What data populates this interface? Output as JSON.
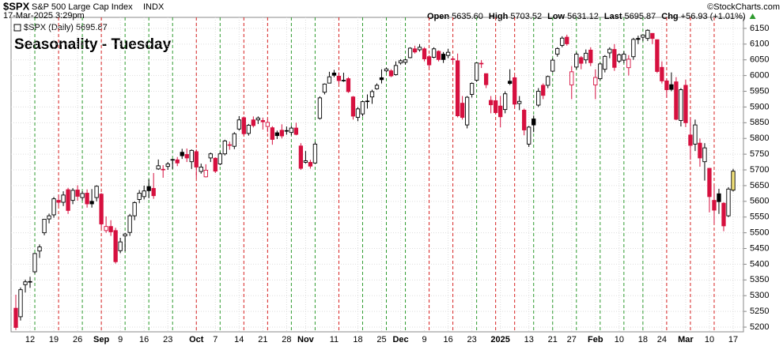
{
  "chart_data": {
    "type": "candlestick",
    "symbol": "$SPX",
    "symbol_name": "S&P 500 Large Cap Index",
    "exchange": "INDX",
    "timestamp": "17-Mar-2025 3:29pm",
    "quote": [
      {
        "label": "Open",
        "value": "5635.60"
      },
      {
        "label": "High",
        "value": "5703.52"
      },
      {
        "label": "Low",
        "value": "5631.12"
      },
      {
        "label": "Last",
        "value": "5695.87"
      },
      {
        "label": "Chg",
        "value": "+56.93 (+1.01%)"
      }
    ],
    "copyright": "©StockCharts.com",
    "legend": "$SPX (Daily) 5695.87",
    "title": "Seasonality - Tuesday",
    "categories": [
      null,
      null,
      null,
      "12",
      null,
      null,
      null,
      null,
      "19",
      null,
      null,
      null,
      null,
      "26",
      null,
      null,
      null,
      null,
      "Sep",
      null,
      null,
      null,
      "9",
      null,
      null,
      null,
      null,
      "16",
      null,
      null,
      null,
      null,
      "23",
      null,
      null,
      null,
      null,
      null,
      "Oct",
      null,
      null,
      null,
      "7",
      null,
      null,
      null,
      null,
      "14",
      null,
      null,
      null,
      null,
      "21",
      null,
      null,
      null,
      null,
      "28",
      null,
      null,
      null,
      "Nov",
      null,
      null,
      null,
      null,
      null,
      "11",
      null,
      null,
      null,
      null,
      "18",
      null,
      null,
      null,
      null,
      "25",
      null,
      null,
      null,
      "Dec",
      null,
      null,
      null,
      null,
      "9",
      null,
      null,
      null,
      null,
      "16",
      null,
      null,
      null,
      null,
      "23",
      null,
      null,
      null,
      null,
      null,
      "2025",
      null,
      null,
      null,
      null,
      null,
      "13",
      null,
      null,
      null,
      null,
      "21",
      null,
      null,
      null,
      "27",
      null,
      null,
      null,
      null,
      "Feb",
      null,
      null,
      null,
      null,
      "10",
      null,
      null,
      null,
      null,
      "18",
      null,
      null,
      null,
      "24",
      null,
      null,
      null,
      null,
      "Mar",
      null,
      null,
      null,
      null,
      "10",
      null,
      null,
      null,
      null,
      "17"
    ],
    "open": [
      5260,
      5233,
      5335,
      5345,
      5376,
      5442,
      5500,
      5544,
      5557,
      5603,
      5597,
      5637,
      5603,
      5636,
      5612,
      5626,
      5600,
      5612,
      5623,
      5507,
      5520,
      5507,
      5443,
      5490,
      5501,
      5554,
      5606,
      5615,
      5647,
      5641,
      5703,
      5702,
      5711,
      5733,
      5732,
      5756,
      5749,
      5726,
      5758,
      5695,
      5678,
      5738,
      5737,
      5719,
      5751,
      5778,
      5775,
      5830,
      5866,
      5816,
      5859,
      5859,
      5857,
      5838,
      5834,
      5818,
      5826,
      5825,
      5819,
      5833,
      5776,
      5724,
      5724,
      5722,
      5864,
      5947,
      5976,
      6008,
      5998,
      5985,
      5990,
      5932,
      5867,
      5878,
      5919,
      5932,
      5958,
      5993,
      6015,
      6015,
      6003,
      6040,
      6042,
      6057,
      6085,
      6082,
      6085,
      6060,
      6058,
      6077,
      6068,
      6064,
      6053,
      6047,
      5912,
      5843,
      5940,
      5985,
      6039,
      6006,
      5921,
      5920,
      5903,
      5892,
      5982,
      5993,
      5911,
      5890,
      5782,
      5862,
      5906,
      5969,
      5969,
      6014,
      6068,
      6096,
      6122,
      5970,
      6027,
      6057,
      6050,
      6081,
      5970,
      5990,
      6020,
      6072,
      6083,
      6046,
      6049,
      6025,
      6060,
      6118,
      6122,
      6118,
      6134,
      6114,
      6026,
      5983,
      5971,
      5980,
      5857,
      5969,
      5811,
      5782,
      5785,
      5726,
      5705,
      5603,
      5624,
      5594,
      5554,
      5635.6
    ],
    "high": [
      5303,
      5326,
      5351,
      5360,
      5436,
      5463,
      5544,
      5561,
      5614,
      5621,
      5632,
      5643,
      5642,
      5651,
      5632,
      5638,
      5639,
      5651,
      5626,
      5552,
      5540,
      5516,
      5484,
      5500,
      5560,
      5600,
      5636,
      5650,
      5670,
      5690,
      5733,
      5715,
      5725,
      5735,
      5741,
      5767,
      5768,
      5765,
      5765,
      5720,
      5718,
      5755,
      5740,
      5757,
      5796,
      5790,
      5820,
      5871,
      5870,
      5846,
      5870,
      5870,
      5866,
      5863,
      5839,
      5825,
      5845,
      5838,
      5840,
      5850,
      5785,
      5760,
      5732,
      5789,
      5934,
      5975,
      6012,
      6018,
      6010,
      6009,
      5995,
      5935,
      5900,
      5920,
      5940,
      5955,
      5975,
      6020,
      6025,
      6020,
      6045,
      6052,
      6053,
      6090,
      6095,
      6100,
      6090,
      6065,
      6090,
      6080,
      6075,
      6085,
      6057,
      6070,
      5935,
      5935,
      5978,
      6041,
      6049,
      6007,
      5935,
      5930,
      5935,
      5950,
      6020,
      6000,
      5935,
      5895,
      5840,
      5873,
      5960,
      5975,
      6000,
      6055,
      6090,
      6125,
      6130,
      6030,
      6074,
      6062,
      6083,
      6090,
      6020,
      6040,
      6065,
      6090,
      6100,
      6070,
      6077,
      6065,
      6120,
      6127,
      6130,
      6147,
      6135,
      6115,
      6045,
      5990,
      6010,
      5995,
      5960,
      5987,
      5865,
      5860,
      5800,
      5785,
      5705,
      5648,
      5640,
      5597,
      5645,
      5703.52
    ],
    "low": [
      5191,
      5221,
      5310,
      5325,
      5370,
      5420,
      5492,
      5530,
      5548,
      5585,
      5585,
      5560,
      5591,
      5602,
      5603,
      5580,
      5580,
      5600,
      5515,
      5500,
      5490,
      5402,
      5435,
      5441,
      5490,
      5540,
      5594,
      5606,
      5610,
      5608,
      5700,
      5675,
      5700,
      5703,
      5712,
      5735,
      5725,
      5703,
      5674,
      5688,
      5676,
      5725,
      5690,
      5715,
      5746,
      5764,
      5766,
      5825,
      5810,
      5809,
      5835,
      5846,
      5828,
      5820,
      5780,
      5798,
      5800,
      5812,
      5810,
      5810,
      5700,
      5720,
      5704,
      5720,
      5860,
      5940,
      5976,
      5995,
      5974,
      5980,
      5945,
      5860,
      5855,
      5870,
      5895,
      5910,
      5955,
      5975,
      6010,
      5995,
      6000,
      6035,
      6035,
      6055,
      6070,
      6076,
      6045,
      6025,
      6055,
      6045,
      6040,
      6055,
      6040,
      5867,
      5860,
      5832,
      5930,
      5980,
      6024,
      5960,
      5880,
      5880,
      5835,
      5880,
      5970,
      5897,
      5890,
      5810,
      5773,
      5820,
      5900,
      5925,
      5960,
      6010,
      6060,
      6090,
      6095,
      5925,
      6020,
      6020,
      6038,
      6030,
      5925,
      5985,
      6010,
      6055,
      6015,
      6040,
      6040,
      6000,
      6050,
      6100,
      6110,
      6110,
      6100,
      6008,
      5975,
      5930,
      5950,
      5858,
      5838,
      5836,
      5732,
      5760,
      5710,
      5666,
      5565,
      5529,
      5560,
      5505,
      5550,
      5631.12
    ],
    "close": [
      5199,
      5319,
      5344,
      5344,
      5434,
      5455,
      5543,
      5554,
      5608,
      5597,
      5620,
      5571,
      5635,
      5616,
      5625,
      5592,
      5592,
      5648,
      5528,
      5520,
      5503,
      5408,
      5471,
      5496,
      5554,
      5596,
      5626,
      5633,
      5634,
      5618,
      5713,
      5702,
      5719,
      5732,
      5722,
      5745,
      5738,
      5762,
      5709,
      5709,
      5699,
      5751,
      5696,
      5751,
      5792,
      5780,
      5815,
      5859,
      5815,
      5842,
      5841,
      5865,
      5853,
      5851,
      5797,
      5809,
      5808,
      5823,
      5833,
      5813,
      5705,
      5729,
      5712,
      5782,
      5929,
      5973,
      5996,
      6001,
      5984,
      5985,
      5949,
      5871,
      5894,
      5917,
      5917,
      5949,
      5969,
      5987,
      6021,
      5999,
      6032,
      6047,
      6050,
      6087,
      6075,
      6090,
      6053,
      6034,
      6085,
      6051,
      6051,
      6074,
      6051,
      5872,
      5867,
      5931,
      5975,
      6040,
      6037,
      5971,
      5907,
      5882,
      5869,
      5942,
      5975,
      5909,
      5918,
      5827,
      5836,
      5843,
      5950,
      5937,
      5997,
      6049,
      6086,
      6119,
      6101,
      6012,
      6068,
      6039,
      6071,
      6041,
      5994,
      6037,
      6061,
      6084,
      6026,
      6066,
      6068,
      6052,
      6115,
      6115,
      6129,
      6144,
      6118,
      6013,
      5983,
      5955,
      5956,
      5861,
      5955,
      5850,
      5778,
      5843,
      5738,
      5770,
      5615,
      5572,
      5599,
      5522,
      5639,
      5695.87
    ],
    "up_color": "#000000",
    "down_color": "#d6103f",
    "current_color": "#f2e27a",
    "tuesdays": [
      4,
      9,
      14,
      18,
      23,
      28,
      33,
      38,
      43,
      48,
      53,
      58,
      63,
      68,
      73,
      78,
      82,
      87,
      92,
      97,
      101,
      105,
      109,
      113,
      118,
      123,
      128,
      132,
      137,
      142,
      147
    ],
    "tuesday_up_color": "#2e9a2e",
    "tuesday_down_color": "#d62020",
    "title_color": "#1030c8",
    "ylim": [
      5185,
      6185
    ],
    "yticks": [
      5200,
      5250,
      5300,
      5350,
      5400,
      5450,
      5500,
      5550,
      5600,
      5650,
      5700,
      5750,
      5800,
      5850,
      5900,
      5950,
      6000,
      6050,
      6100,
      6150
    ],
    "grid": true
  }
}
